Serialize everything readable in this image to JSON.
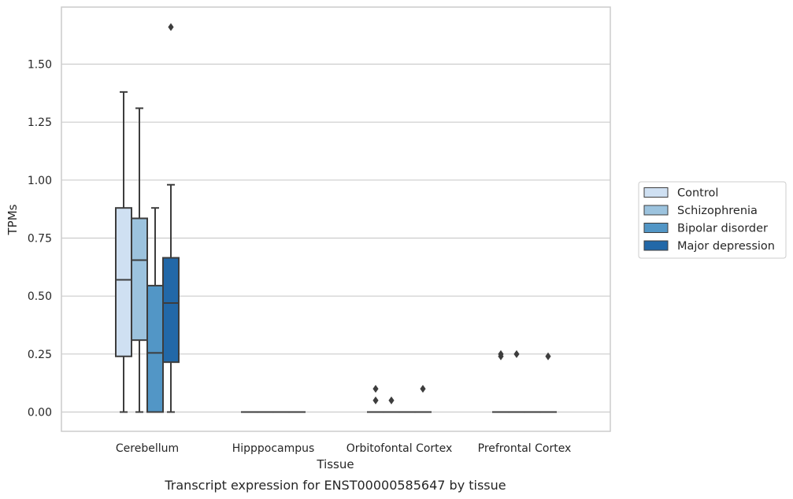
{
  "caption": "Transcript expression for ENST00000585647 by tissue",
  "chart_data": {
    "type": "box",
    "xlabel": "Tissue",
    "ylabel": "TPMs",
    "ylim": [
      -0.08,
      1.76
    ],
    "yticks": [
      "0.00",
      "0.25",
      "0.50",
      "0.75",
      "1.00",
      "1.25",
      "1.50"
    ],
    "grid": "horizontal",
    "legend_position": "right",
    "categories": [
      "Cerebellum",
      "Hipppocampus",
      "Orbitofontal Cortex",
      "Prefrontal Cortex"
    ],
    "series": [
      {
        "name": "Control",
        "color": "#cfe0f2",
        "boxes": [
          {
            "whislo": 0.0,
            "q1": 0.24,
            "med": 0.57,
            "q3": 0.88,
            "whishi": 1.38,
            "fliers": []
          },
          {
            "whislo": 0.0,
            "q1": 0.0,
            "med": 0.0,
            "q3": 0.0,
            "whishi": 0.0,
            "fliers": []
          },
          {
            "whislo": 0.0,
            "q1": 0.0,
            "med": 0.0,
            "q3": 0.0,
            "whishi": 0.0,
            "fliers": [
              0.05,
              0.1
            ]
          },
          {
            "whislo": 0.0,
            "q1": 0.0,
            "med": 0.0,
            "q3": 0.0,
            "whishi": 0.0,
            "fliers": [
              0.24,
              0.25
            ]
          }
        ]
      },
      {
        "name": "Schizophrenia",
        "color": "#9cc3de",
        "boxes": [
          {
            "whislo": 0.0,
            "q1": 0.31,
            "med": 0.655,
            "q3": 0.835,
            "whishi": 1.31,
            "fliers": []
          },
          {
            "whislo": 0.0,
            "q1": 0.0,
            "med": 0.0,
            "q3": 0.0,
            "whishi": 0.0,
            "fliers": []
          },
          {
            "whislo": 0.0,
            "q1": 0.0,
            "med": 0.0,
            "q3": 0.0,
            "whishi": 0.0,
            "fliers": [
              0.05
            ]
          },
          {
            "whislo": 0.0,
            "q1": 0.0,
            "med": 0.0,
            "q3": 0.0,
            "whishi": 0.0,
            "fliers": [
              0.25
            ]
          }
        ]
      },
      {
        "name": "Bipolar disorder",
        "color": "#5296c6",
        "boxes": [
          {
            "whislo": 0.0,
            "q1": 0.0,
            "med": 0.255,
            "q3": 0.545,
            "whishi": 0.88,
            "fliers": []
          },
          {
            "whislo": 0.0,
            "q1": 0.0,
            "med": 0.0,
            "q3": 0.0,
            "whishi": 0.0,
            "fliers": []
          },
          {
            "whislo": 0.0,
            "q1": 0.0,
            "med": 0.0,
            "q3": 0.0,
            "whishi": 0.0,
            "fliers": []
          },
          {
            "whislo": 0.0,
            "q1": 0.0,
            "med": 0.0,
            "q3": 0.0,
            "whishi": 0.0,
            "fliers": []
          }
        ]
      },
      {
        "name": "Major depression",
        "color": "#2268a8",
        "boxes": [
          {
            "whislo": 0.0,
            "q1": 0.215,
            "med": 0.47,
            "q3": 0.665,
            "whishi": 0.98,
            "fliers": [
              1.66
            ]
          },
          {
            "whislo": 0.0,
            "q1": 0.0,
            "med": 0.0,
            "q3": 0.0,
            "whishi": 0.0,
            "fliers": []
          },
          {
            "whislo": 0.0,
            "q1": 0.0,
            "med": 0.0,
            "q3": 0.0,
            "whishi": 0.0,
            "fliers": [
              0.1
            ]
          },
          {
            "whislo": 0.0,
            "q1": 0.0,
            "med": 0.0,
            "q3": 0.0,
            "whishi": 0.0,
            "fliers": [
              0.24
            ]
          }
        ]
      }
    ]
  }
}
